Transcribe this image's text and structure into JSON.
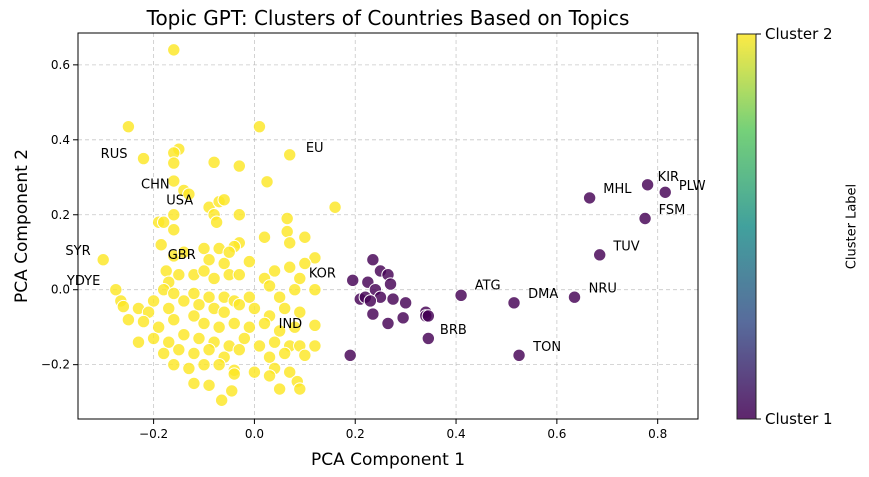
{
  "chart_data": {
    "type": "scatter",
    "title": "Topic GPT: Clusters of Countries Based on Topics",
    "xlabel": "PCA Component 1",
    "ylabel": "PCA Component 2",
    "xlim": [
      -0.35,
      0.88
    ],
    "ylim": [
      -0.345,
      0.685
    ],
    "xticks": [
      -0.2,
      0.0,
      0.2,
      0.4,
      0.6,
      0.8
    ],
    "xtick_labels": [
      "−0.2",
      "0.0",
      "0.2",
      "0.4",
      "0.6",
      "0.8"
    ],
    "yticks": [
      -0.2,
      0.0,
      0.2,
      0.4,
      0.6
    ],
    "ytick_labels": [
      "−0.2",
      "0.0",
      "0.2",
      "0.4",
      "0.6"
    ],
    "grid": true,
    "colorbar": {
      "label": "Cluster Label",
      "tick_labels": [
        "Cluster 1",
        "Cluster 2"
      ],
      "colormap": [
        "#440154",
        "#3b528b",
        "#21918c",
        "#5ec962",
        "#fde725"
      ]
    },
    "series": [
      {
        "color": "#fde725",
        "points": [
          [
            -0.16,
            0.64
          ],
          [
            -0.25,
            0.435
          ],
          [
            0.01,
            0.435
          ],
          [
            -0.15,
            0.375
          ],
          [
            -0.22,
            0.35
          ],
          [
            -0.16,
            0.365
          ],
          [
            -0.08,
            0.34
          ],
          [
            -0.16,
            0.338
          ],
          [
            -0.03,
            0.33
          ],
          [
            0.07,
            0.36
          ],
          [
            -0.16,
            0.29
          ],
          [
            0.025,
            0.288
          ],
          [
            -0.14,
            0.265
          ],
          [
            -0.13,
            0.255
          ],
          [
            -0.19,
            0.18
          ],
          [
            -0.18,
            0.18
          ],
          [
            -0.16,
            0.16
          ],
          [
            -0.16,
            0.2
          ],
          [
            -0.09,
            0.22
          ],
          [
            -0.07,
            0.235
          ],
          [
            -0.06,
            0.24
          ],
          [
            -0.08,
            0.2
          ],
          [
            -0.075,
            0.18
          ],
          [
            -0.03,
            0.2
          ],
          [
            0.065,
            0.19
          ],
          [
            0.065,
            0.155
          ],
          [
            0.16,
            0.22
          ],
          [
            0.1,
            0.14
          ],
          [
            0.02,
            0.14
          ],
          [
            0.07,
            0.125
          ],
          [
            -0.03,
            0.125
          ],
          [
            -0.185,
            0.12
          ],
          [
            -0.16,
            0.09
          ],
          [
            -0.14,
            0.1
          ],
          [
            -0.1,
            0.11
          ],
          [
            -0.07,
            0.11
          ],
          [
            -0.04,
            0.115
          ],
          [
            -0.09,
            0.08
          ],
          [
            -0.06,
            0.07
          ],
          [
            -0.05,
            0.1
          ],
          [
            -0.01,
            0.075
          ],
          [
            0.04,
            0.05
          ],
          [
            0.12,
            0.085
          ],
          [
            0.1,
            0.07
          ],
          [
            -0.3,
            0.08
          ],
          [
            -0.175,
            0.05
          ],
          [
            -0.15,
            0.04
          ],
          [
            -0.12,
            0.04
          ],
          [
            -0.1,
            0.05
          ],
          [
            -0.08,
            0.03
          ],
          [
            -0.05,
            0.04
          ],
          [
            -0.03,
            0.04
          ],
          [
            0.02,
            0.03
          ],
          [
            0.07,
            0.06
          ],
          [
            0.09,
            0.03
          ],
          [
            0.12,
            0.0
          ],
          [
            -0.17,
            0.02
          ],
          [
            -0.18,
            0.0
          ],
          [
            -0.16,
            -0.01
          ],
          [
            -0.12,
            -0.01
          ],
          [
            -0.09,
            -0.02
          ],
          [
            -0.06,
            -0.02
          ],
          [
            -0.04,
            -0.03
          ],
          [
            -0.01,
            -0.02
          ],
          [
            0.03,
            0.01
          ],
          [
            0.05,
            -0.02
          ],
          [
            0.08,
            0.0
          ],
          [
            -0.275,
            0.0
          ],
          [
            -0.265,
            -0.03
          ],
          [
            -0.26,
            -0.045
          ],
          [
            -0.23,
            -0.05
          ],
          [
            -0.2,
            -0.03
          ],
          [
            -0.21,
            -0.06
          ],
          [
            -0.17,
            -0.05
          ],
          [
            -0.14,
            -0.03
          ],
          [
            -0.11,
            -0.04
          ],
          [
            -0.08,
            -0.05
          ],
          [
            -0.06,
            -0.06
          ],
          [
            -0.03,
            -0.04
          ],
          [
            0.0,
            -0.05
          ],
          [
            0.03,
            -0.07
          ],
          [
            0.06,
            -0.05
          ],
          [
            0.09,
            -0.06
          ],
          [
            -0.25,
            -0.08
          ],
          [
            -0.22,
            -0.085
          ],
          [
            -0.19,
            -0.1
          ],
          [
            -0.16,
            -0.08
          ],
          [
            -0.12,
            -0.07
          ],
          [
            -0.1,
            -0.09
          ],
          [
            -0.07,
            -0.1
          ],
          [
            -0.04,
            -0.09
          ],
          [
            -0.01,
            -0.1
          ],
          [
            0.02,
            -0.09
          ],
          [
            0.05,
            -0.11
          ],
          [
            0.08,
            -0.1
          ],
          [
            0.12,
            -0.095
          ],
          [
            -0.23,
            -0.14
          ],
          [
            -0.2,
            -0.13
          ],
          [
            -0.17,
            -0.14
          ],
          [
            -0.14,
            -0.12
          ],
          [
            -0.11,
            -0.13
          ],
          [
            -0.08,
            -0.14
          ],
          [
            -0.05,
            -0.15
          ],
          [
            -0.02,
            -0.13
          ],
          [
            0.01,
            -0.15
          ],
          [
            0.04,
            -0.14
          ],
          [
            0.07,
            -0.15
          ],
          [
            0.09,
            -0.15
          ],
          [
            0.12,
            -0.15
          ],
          [
            -0.18,
            -0.17
          ],
          [
            -0.15,
            -0.16
          ],
          [
            -0.12,
            -0.17
          ],
          [
            -0.09,
            -0.16
          ],
          [
            -0.06,
            -0.18
          ],
          [
            -0.03,
            -0.16
          ],
          [
            0.03,
            -0.18
          ],
          [
            0.06,
            -0.17
          ],
          [
            0.1,
            -0.175
          ],
          [
            -0.16,
            -0.2
          ],
          [
            -0.13,
            -0.21
          ],
          [
            -0.1,
            -0.2
          ],
          [
            -0.07,
            -0.2
          ],
          [
            -0.04,
            -0.215
          ],
          [
            0.0,
            -0.22
          ],
          [
            0.04,
            -0.21
          ],
          [
            0.07,
            -0.22
          ],
          [
            -0.12,
            -0.25
          ],
          [
            -0.09,
            -0.255
          ],
          [
            -0.04,
            -0.225
          ],
          [
            0.03,
            -0.23
          ],
          [
            0.05,
            -0.265
          ],
          [
            0.085,
            -0.245
          ],
          [
            0.09,
            -0.265
          ],
          [
            -0.045,
            -0.27
          ],
          [
            -0.065,
            -0.295
          ]
        ]
      },
      {
        "color": "#440154",
        "points": [
          [
            0.235,
            0.08
          ],
          [
            0.25,
            0.05
          ],
          [
            0.195,
            0.025
          ],
          [
            0.265,
            0.04
          ],
          [
            0.225,
            0.02
          ],
          [
            0.27,
            0.015
          ],
          [
            0.24,
            0.0
          ],
          [
            0.21,
            -0.025
          ],
          [
            0.22,
            -0.02
          ],
          [
            0.25,
            -0.02
          ],
          [
            0.23,
            -0.03
          ],
          [
            0.275,
            -0.025
          ],
          [
            0.3,
            -0.035
          ],
          [
            0.34,
            -0.06
          ],
          [
            0.34,
            -0.07
          ],
          [
            0.235,
            -0.065
          ],
          [
            0.265,
            -0.09
          ],
          [
            0.295,
            -0.075
          ],
          [
            0.345,
            -0.07
          ],
          [
            0.345,
            -0.13
          ],
          [
            0.19,
            -0.175
          ],
          [
            0.41,
            -0.015
          ],
          [
            0.515,
            -0.035
          ],
          [
            0.525,
            -0.175
          ],
          [
            0.635,
            -0.02
          ],
          [
            0.685,
            0.093
          ],
          [
            0.665,
            0.245
          ],
          [
            0.775,
            0.19
          ],
          [
            0.78,
            0.28
          ],
          [
            0.815,
            0.26
          ]
        ]
      }
    ],
    "annotations": [
      {
        "text": "EU",
        "x": 0.102,
        "y": 0.368
      },
      {
        "text": "RUS",
        "x": -0.305,
        "y": 0.352
      },
      {
        "text": "CHN",
        "x": -0.225,
        "y": 0.27
      },
      {
        "text": "USA",
        "x": -0.175,
        "y": 0.228
      },
      {
        "text": "SYR",
        "x": -0.375,
        "y": 0.092
      },
      {
        "text": "GBR",
        "x": -0.172,
        "y": 0.082
      },
      {
        "text": "YDYE",
        "x": -0.372,
        "y": 0.012
      },
      {
        "text": "KOR",
        "x": 0.108,
        "y": 0.032
      },
      {
        "text": "IND",
        "x": 0.048,
        "y": -0.102
      },
      {
        "text": "ATG",
        "x": 0.437,
        "y": 0.0
      },
      {
        "text": "BRB",
        "x": 0.368,
        "y": -0.118
      },
      {
        "text": "DMA",
        "x": 0.543,
        "y": -0.022
      },
      {
        "text": "TON",
        "x": 0.553,
        "y": -0.163
      },
      {
        "text": "NRU",
        "x": 0.663,
        "y": -0.008
      },
      {
        "text": "TUV",
        "x": 0.712,
        "y": 0.105
      },
      {
        "text": "MHL",
        "x": 0.692,
        "y": 0.258
      },
      {
        "text": "FSM",
        "x": 0.802,
        "y": 0.202
      },
      {
        "text": "KIR",
        "x": 0.8,
        "y": 0.29
      },
      {
        "text": "PLW",
        "x": 0.842,
        "y": 0.266
      }
    ]
  }
}
